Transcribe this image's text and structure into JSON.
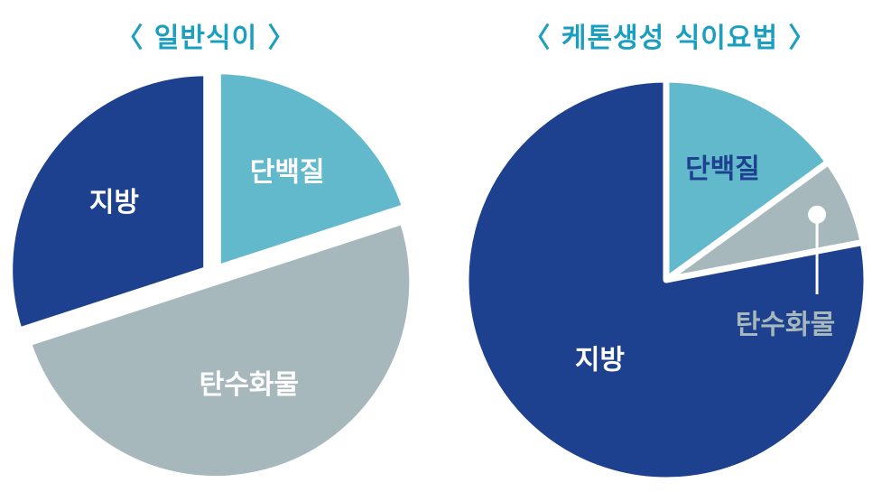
{
  "chart_data": [
    {
      "type": "pie",
      "title": "〈 일반식이 〉",
      "slices": [
        {
          "label": "단백질",
          "value": 20,
          "color": "#62b9cb",
          "label_color": "#ffffff"
        },
        {
          "label": "탄수화물",
          "value": 50,
          "color": "#a7b8bd",
          "label_color": "#ffffff"
        },
        {
          "label": "지방",
          "value": 30,
          "color": "#1d418e",
          "label_color": "#ffffff"
        }
      ]
    },
    {
      "type": "pie",
      "title": "〈 케톤생성 식이요법 〉",
      "slices": [
        {
          "label": "단백질",
          "value": 15,
          "color": "#62b9cb",
          "label_color": "#1d418e"
        },
        {
          "label": "탄수화물",
          "value": 7,
          "color": "#a7b8bd",
          "label_color": "#a7b8bd"
        },
        {
          "label": "지방",
          "value": 78,
          "color": "#1d418e",
          "label_color": "#ffffff"
        }
      ]
    }
  ],
  "colors": {
    "title": "#1a9fc0",
    "background": "#ffffff"
  }
}
